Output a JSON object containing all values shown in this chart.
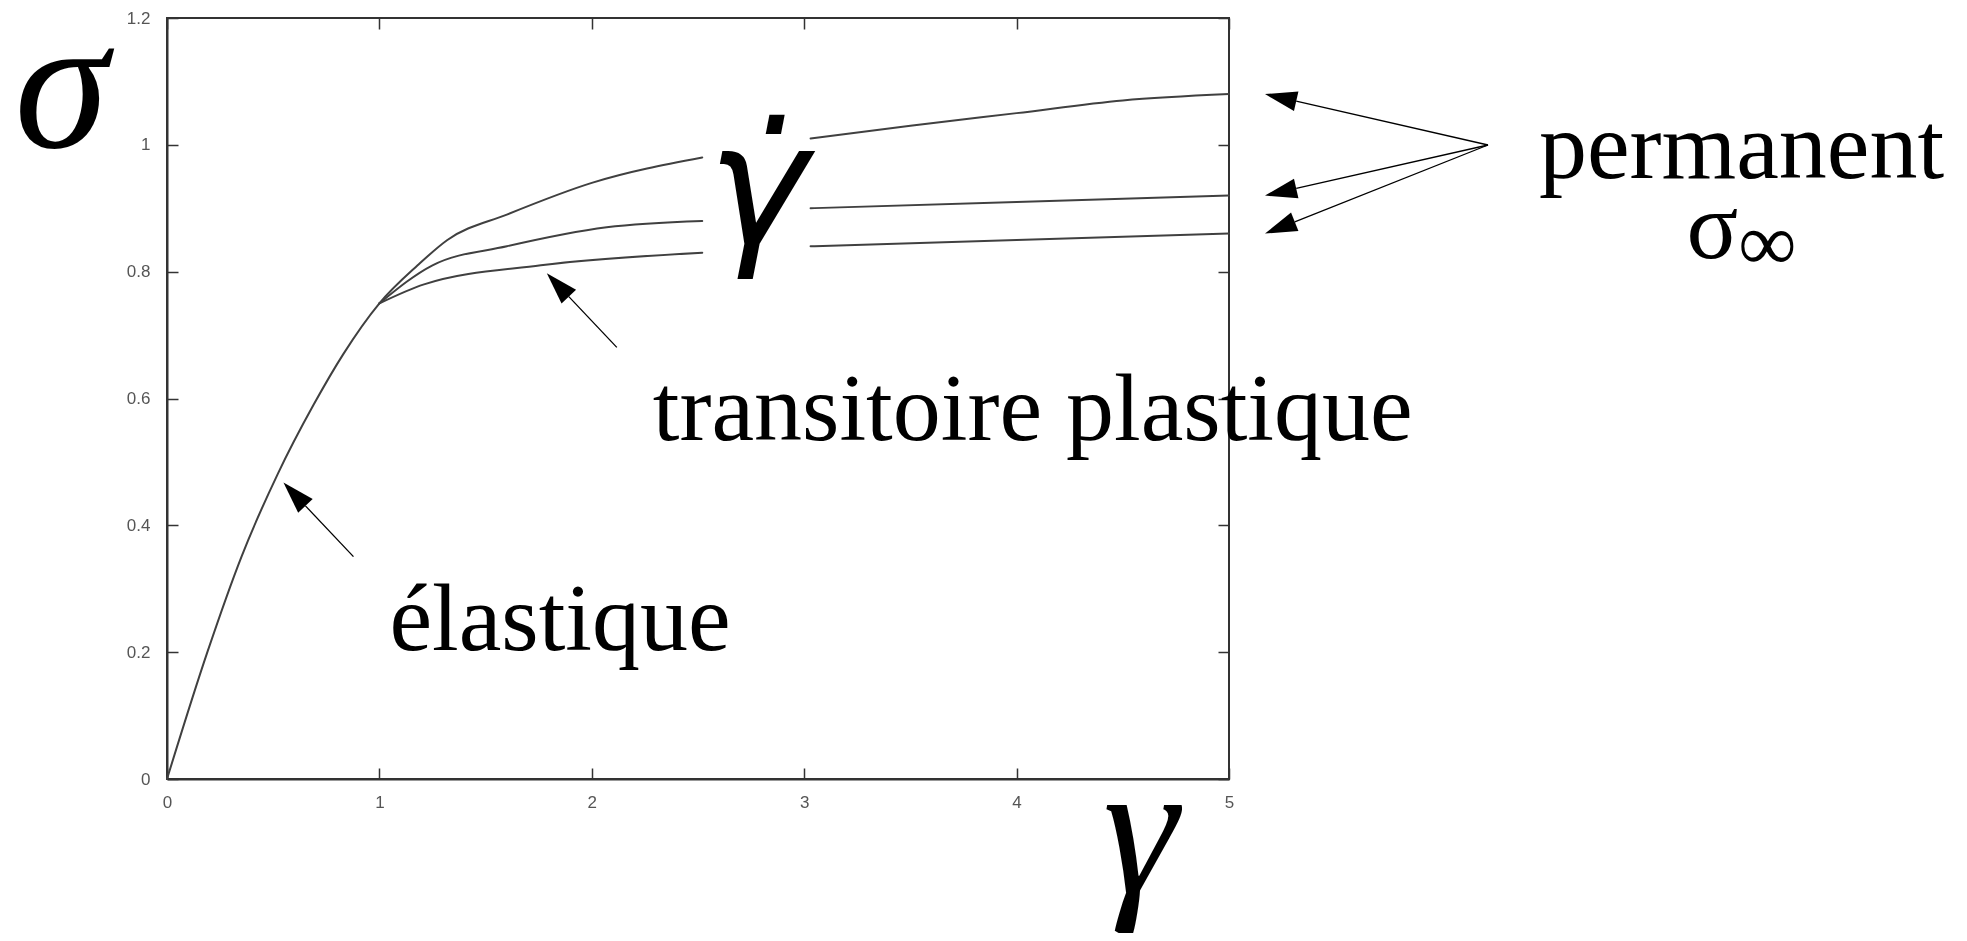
{
  "chart_data": {
    "type": "line",
    "xlabel": "γ",
    "ylabel": "σ",
    "xlim": [
      0,
      5
    ],
    "xticks": [
      0,
      1,
      2,
      3,
      4,
      5
    ],
    "ylim": [
      0,
      1.2
    ],
    "yticks": [
      0,
      0.2,
      0.4,
      0.6,
      0.8,
      1,
      1.2
    ],
    "series": [
      {
        "color": "#404040",
        "x": [
          0,
          0.19,
          0.35,
          0.52,
          0.69,
          0.83,
          1,
          1.18,
          1.32,
          1.6,
          2,
          2.52,
          2.78,
          3.03,
          3.5,
          4,
          4.5,
          5
        ],
        "values": [
          0,
          0.2,
          0.35,
          0.48,
          0.59,
          0.67,
          0.75,
          0.81,
          0.85,
          0.89,
          0.94,
          0.98,
          null,
          1.01,
          1.03,
          1.05,
          1.07,
          1.08
        ]
      },
      {
        "color": "#404040",
        "x": [
          1,
          1.25,
          1.6,
          2.07,
          2.52,
          2.78,
          3.03,
          4,
          5
        ],
        "values": [
          0.75,
          0.81,
          0.84,
          0.87,
          0.88,
          null,
          0.9,
          0.91,
          0.92
        ]
      },
      {
        "color": "#404040",
        "x": [
          1,
          1.21,
          1.76,
          2.52,
          2.78,
          3.03,
          4,
          5
        ],
        "values": [
          0.75,
          0.78,
          0.81,
          0.83,
          null,
          0.84,
          0.85,
          0.86
        ]
      }
    ],
    "annotations": [
      {
        "text": "élastique",
        "x": 0.52,
        "y": 0.48
      },
      {
        "text": "transitoire plastique",
        "x": 1.76,
        "y": 0.81
      },
      "permanent σ$_{∞}$",
      "γ̇"
    ]
  }
}
